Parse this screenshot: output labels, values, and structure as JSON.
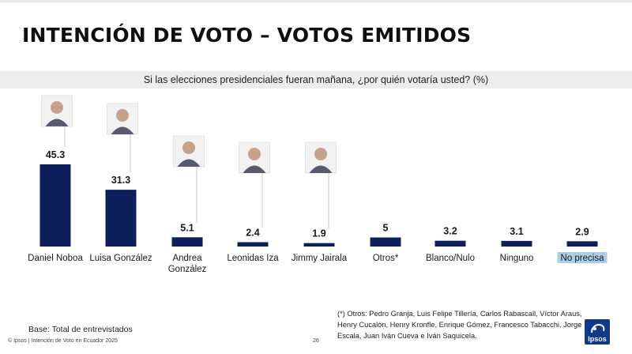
{
  "header": {
    "title": "INTENCIÓN DE VOTO – VOTOS EMITIDOS",
    "question": "Si las elecciones presidenciales fueran mañana, ¿por quién votaría usted? (%)"
  },
  "chart_data": {
    "type": "bar",
    "title": "INTENCIÓN DE VOTO – VOTOS EMITIDOS",
    "subtitle": "Si las elecciones presidenciales fueran mañana, ¿por quién votaría usted? (%)",
    "categories": [
      "Daniel Noboa",
      "Luisa González",
      "Andrea González",
      "Leonidas Iza",
      "Jimmy Jairala",
      "Otros*",
      "Blanco/Nulo",
      "Ninguno",
      "No precisa"
    ],
    "category_lines": [
      [
        "Daniel Noboa"
      ],
      [
        "Luisa González"
      ],
      [
        "Andrea",
        "González"
      ],
      [
        "Leonidas Iza"
      ],
      [
        "Jimmy Jairala"
      ],
      [
        "Otros*"
      ],
      [
        "Blanco/Nulo"
      ],
      [
        "Ninguno"
      ],
      [
        "No precisa"
      ]
    ],
    "values": [
      45.3,
      31.3,
      5.1,
      2.4,
      1.9,
      5,
      3.2,
      3.1,
      2.9
    ],
    "value_labels": [
      "45.3",
      "31.3",
      "5.1",
      "2.4",
      "1.9",
      "5",
      "3.2",
      "3.1",
      "2.9"
    ],
    "highlighted_category": "No precisa",
    "ylim": [
      0,
      50
    ],
    "xlabel": "",
    "ylabel": "",
    "grid": false,
    "legend": "none",
    "candidate_photos": [
      "portrait-icon",
      "portrait-icon",
      "portrait-icon",
      "portrait-icon",
      "portrait-icon"
    ]
  },
  "colors": {
    "bar": "#0d1f5c",
    "highlight": "#a9cfe8",
    "logo": "#0f3a8a"
  },
  "footer": {
    "footnote": "(*) Otros: Pedro Granja, Luis Felipe Tillería, Carlos Rabascall, Víctor Araus, Henry Cucalón,  Henry Kronfle, Enrique Gómez, Francesco Tabacchi, Jorge Escala, Juan Iván Cueva e Iván Saquicela.",
    "base": "Base: Total de entrevistados",
    "copyright": "© Ipsos | Intención de Voto en Ecuador 2025",
    "page_number": "26",
    "logo_text": "Ipsos"
  }
}
